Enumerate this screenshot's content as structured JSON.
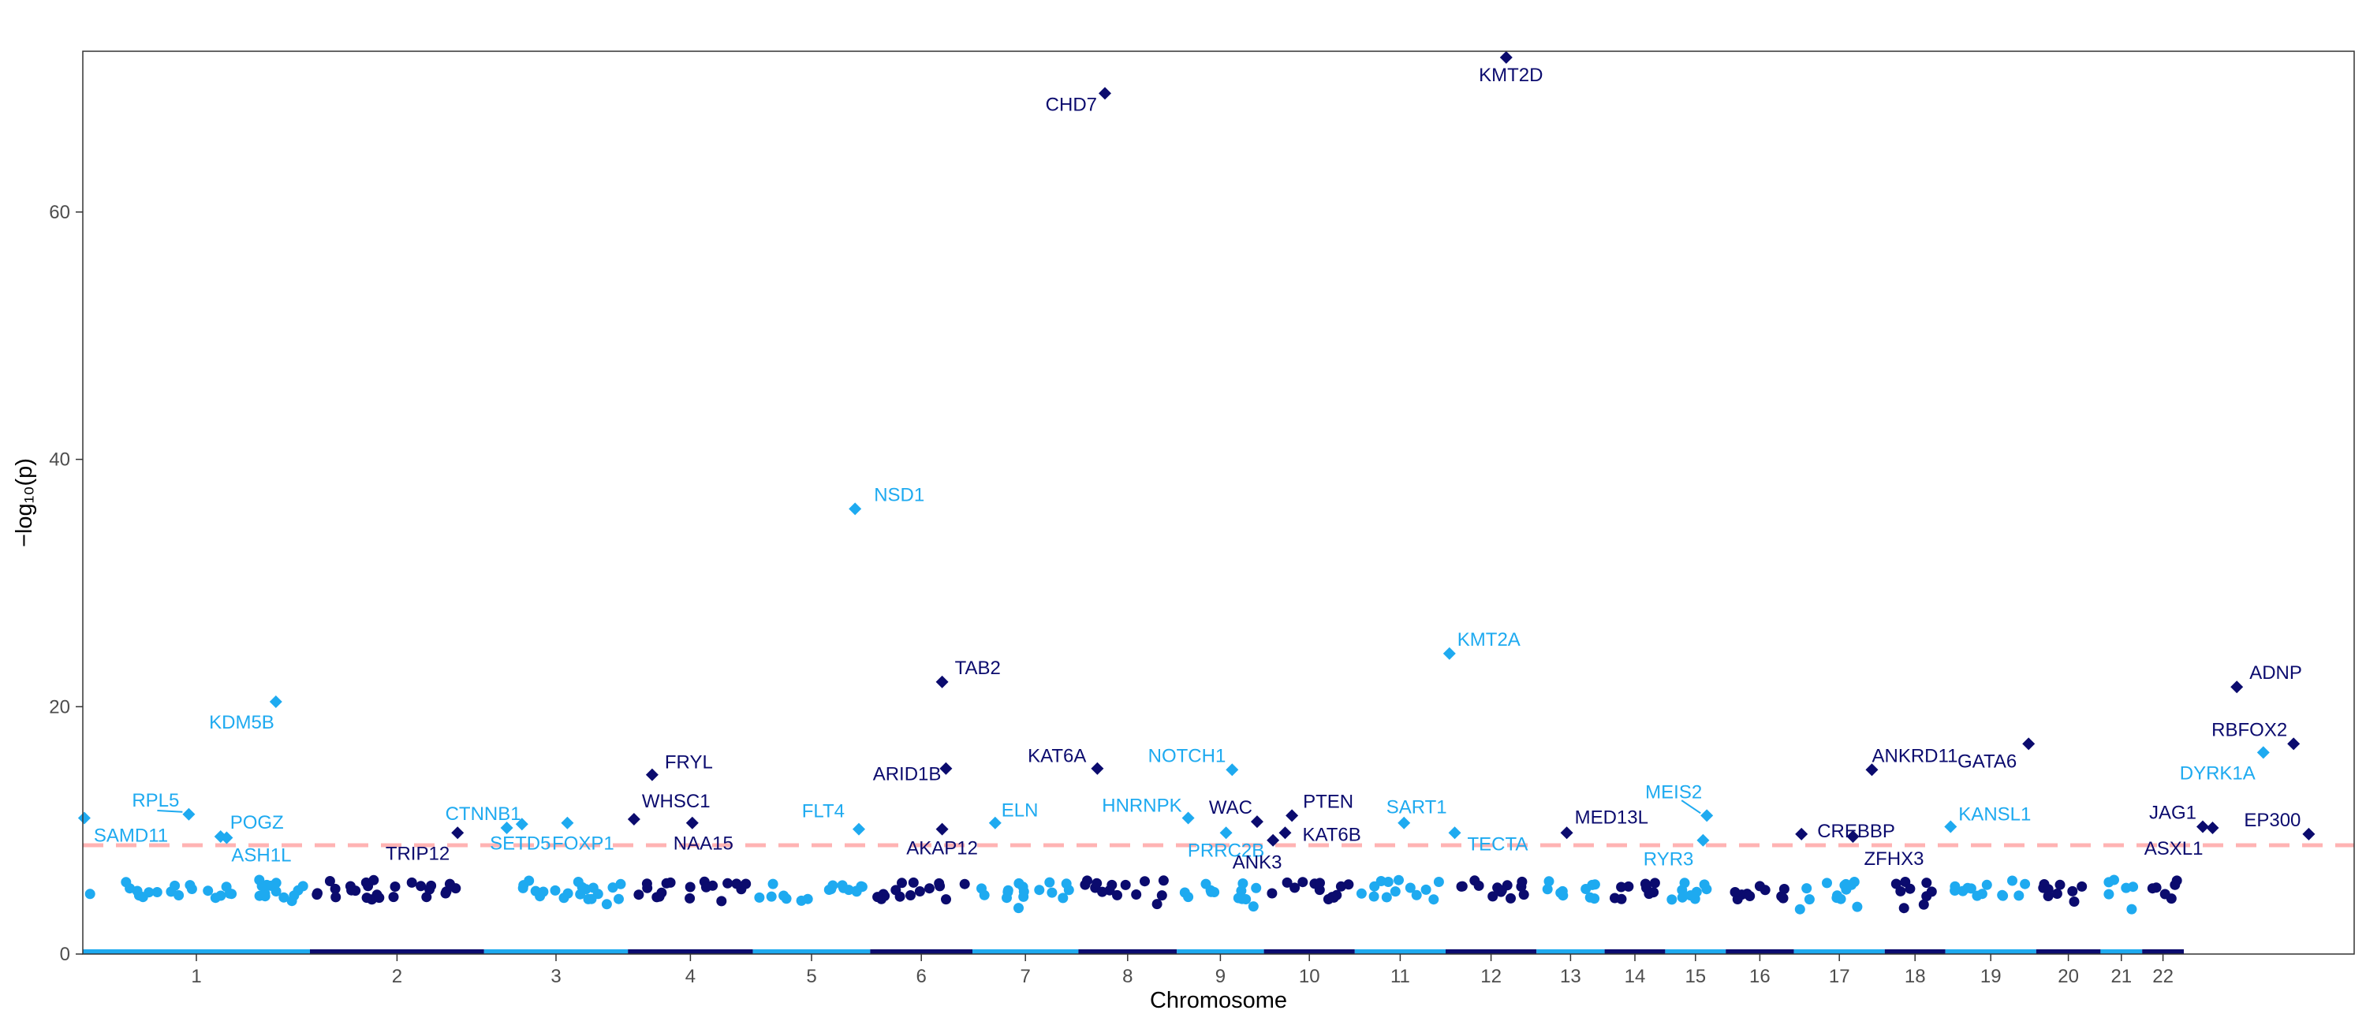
{
  "colors": {
    "light": "#1eaaf0",
    "dark": "#0b0b6e",
    "threshold": "#ffb3b3",
    "axis": "#333333",
    "tick_text": "#4d4d4d"
  },
  "chart_data": {
    "type": "scatter",
    "subtype": "manhattan",
    "xlabel": "Chromosome",
    "ylabel": "−log₁₀(p)",
    "ylim": [
      0,
      73
    ],
    "yticks": [
      0,
      20,
      40,
      60
    ],
    "xlim": [
      0,
      3000
    ],
    "threshold": 8.8,
    "chromosomes": [
      {
        "label": "1",
        "start": 0,
        "end": 300,
        "color": "light"
      },
      {
        "label": "2",
        "start": 300,
        "end": 530,
        "color": "dark"
      },
      {
        "label": "3",
        "start": 530,
        "end": 720,
        "color": "light"
      },
      {
        "label": "4",
        "start": 720,
        "end": 885,
        "color": "dark"
      },
      {
        "label": "5",
        "start": 885,
        "end": 1040,
        "color": "light"
      },
      {
        "label": "6",
        "start": 1040,
        "end": 1175,
        "color": "dark"
      },
      {
        "label": "7",
        "start": 1175,
        "end": 1315,
        "color": "light"
      },
      {
        "label": "8",
        "start": 1315,
        "end": 1445,
        "color": "dark"
      },
      {
        "label": "9",
        "start": 1445,
        "end": 1560,
        "color": "light"
      },
      {
        "label": "10",
        "start": 1560,
        "end": 1680,
        "color": "dark"
      },
      {
        "label": "11",
        "start": 1680,
        "end": 1800,
        "color": "light"
      },
      {
        "label": "12",
        "start": 1800,
        "end": 1920,
        "color": "dark"
      },
      {
        "label": "13",
        "start": 1920,
        "end": 2010,
        "color": "light"
      },
      {
        "label": "14",
        "start": 2010,
        "end": 2090,
        "color": "dark"
      },
      {
        "label": "15",
        "start": 2090,
        "end": 2170,
        "color": "light"
      },
      {
        "label": "16",
        "start": 2170,
        "end": 2260,
        "color": "dark"
      },
      {
        "label": "17",
        "start": 2260,
        "end": 2380,
        "color": "light"
      },
      {
        "label": "18",
        "start": 2380,
        "end": 2460,
        "color": "dark"
      },
      {
        "label": "19",
        "start": 2460,
        "end": 2580,
        "color": "light"
      },
      {
        "label": "20",
        "start": 2580,
        "end": 2665,
        "color": "dark"
      },
      {
        "label": "21",
        "start": 2665,
        "end": 2720,
        "color": "light"
      },
      {
        "label": "22",
        "start": 2720,
        "end": 2775,
        "color": "dark"
      }
    ],
    "genes": [
      {
        "name": "SAMD11",
        "x": 2,
        "y": 11.0,
        "color": "light"
      },
      {
        "name": "RPL5",
        "x": 140,
        "y": 11.3,
        "color": "light"
      },
      {
        "name": "POGZ",
        "x": 182,
        "y": 9.5,
        "color": "light"
      },
      {
        "name": "ASH1L",
        "x": 190,
        "y": 9.4,
        "color": "light"
      },
      {
        "name": "KDM5B",
        "x": 255,
        "y": 20.4,
        "color": "light"
      },
      {
        "name": "TRIP12",
        "x": 495,
        "y": 9.8,
        "color": "dark"
      },
      {
        "name": "CTNNB1",
        "x": 560,
        "y": 10.2,
        "color": "light"
      },
      {
        "name": "SETD5",
        "x": 580,
        "y": 10.5,
        "color": "light"
      },
      {
        "name": "FOXP1",
        "x": 640,
        "y": 10.6,
        "color": "light"
      },
      {
        "name": "WHSC1",
        "x": 728,
        "y": 10.9,
        "color": "dark"
      },
      {
        "name": "FRYL",
        "x": 752,
        "y": 14.5,
        "color": "dark"
      },
      {
        "name": "NAA15",
        "x": 805,
        "y": 10.6,
        "color": "dark"
      },
      {
        "name": "FLT4",
        "x": 1025,
        "y": 10.1,
        "color": "light"
      },
      {
        "name": "NSD1",
        "x": 1020,
        "y": 36.0,
        "color": "light"
      },
      {
        "name": "TAB2",
        "x": 1135,
        "y": 22.0,
        "color": "dark"
      },
      {
        "name": "ARID1B",
        "x": 1140,
        "y": 15.0,
        "color": "dark"
      },
      {
        "name": "AKAP12",
        "x": 1135,
        "y": 10.1,
        "color": "dark"
      },
      {
        "name": "ELN",
        "x": 1205,
        "y": 10.6,
        "color": "light"
      },
      {
        "name": "KAT6A",
        "x": 1340,
        "y": 15.0,
        "color": "dark"
      },
      {
        "name": "CHD7",
        "x": 1350,
        "y": 69.6,
        "color": "dark"
      },
      {
        "name": "HNRNPK",
        "x": 1460,
        "y": 11.0,
        "color": "light"
      },
      {
        "name": "NOTCH1",
        "x": 1518,
        "y": 14.9,
        "color": "light"
      },
      {
        "name": "PRRC2B",
        "x": 1510,
        "y": 9.8,
        "color": "light"
      },
      {
        "name": "WAC",
        "x": 1551,
        "y": 10.7,
        "color": "dark"
      },
      {
        "name": "ANK3",
        "x": 1572,
        "y": 9.2,
        "color": "dark"
      },
      {
        "name": "KAT6B",
        "x": 1588,
        "y": 9.8,
        "color": "dark"
      },
      {
        "name": "PTEN",
        "x": 1597,
        "y": 11.2,
        "color": "dark"
      },
      {
        "name": "SART1",
        "x": 1745,
        "y": 10.6,
        "color": "light"
      },
      {
        "name": "TECTA",
        "x": 1812,
        "y": 9.8,
        "color": "light"
      },
      {
        "name": "KMT2A",
        "x": 1805,
        "y": 24.3,
        "color": "light"
      },
      {
        "name": "KMT2D",
        "x": 1880,
        "y": 72.5,
        "color": "dark"
      },
      {
        "name": "MED13L",
        "x": 1960,
        "y": 9.8,
        "color": "dark"
      },
      {
        "name": "RYR3",
        "x": 2140,
        "y": 9.2,
        "color": "light"
      },
      {
        "name": "MEIS2",
        "x": 2145,
        "y": 11.2,
        "color": "light"
      },
      {
        "name": "CREBBP",
        "x": 2270,
        "y": 9.7,
        "color": "dark"
      },
      {
        "name": "ZFHX3",
        "x": 2338,
        "y": 9.5,
        "color": "dark"
      },
      {
        "name": "ANKRD11",
        "x": 2363,
        "y": 14.9,
        "color": "dark"
      },
      {
        "name": "KANSL1",
        "x": 2467,
        "y": 10.3,
        "color": "light"
      },
      {
        "name": "GATA6",
        "x": 2570,
        "y": 17.0,
        "color": "dark"
      },
      {
        "name": "JAG1",
        "x": 2800,
        "y": 10.3,
        "color": "dark"
      },
      {
        "name": "ASXL1",
        "x": 2813,
        "y": 10.2,
        "color": "dark"
      },
      {
        "name": "ADNP",
        "x": 2845,
        "y": 21.6,
        "color": "dark"
      },
      {
        "name": "DYRK1A",
        "x": 2880,
        "y": 16.3,
        "color": "light"
      },
      {
        "name": "RBFOX2",
        "x": 2920,
        "y": 17.0,
        "color": "dark"
      },
      {
        "name": "EP300",
        "x": 2940,
        "y": 9.7,
        "color": "dark"
      }
    ]
  }
}
